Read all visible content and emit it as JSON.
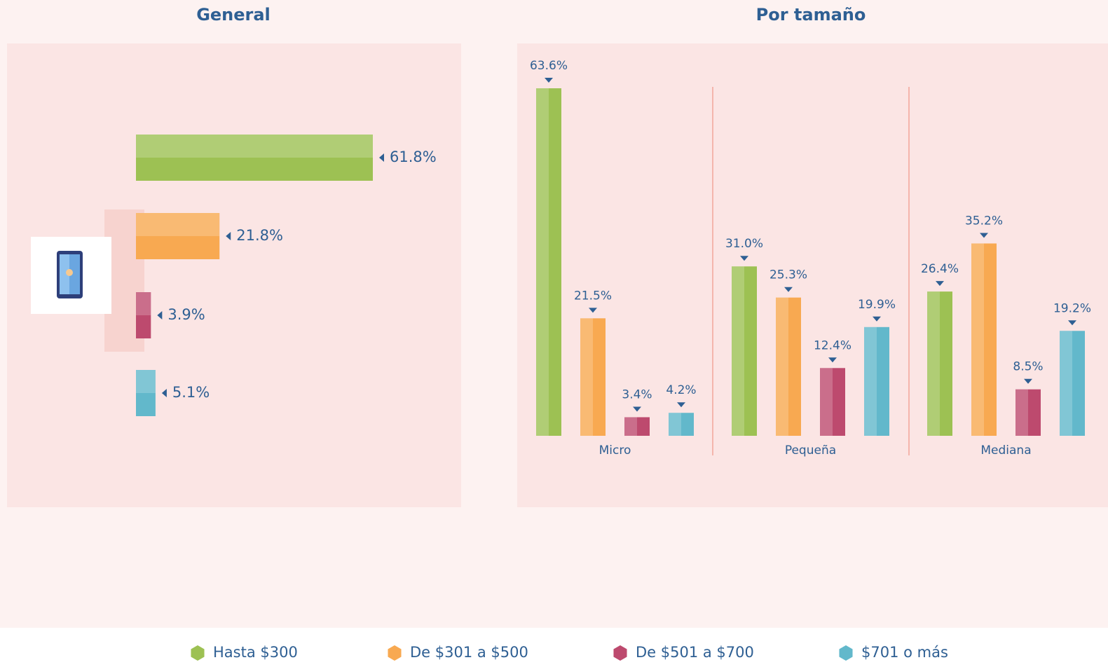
{
  "chart_data": [
    {
      "type": "hbar",
      "title": "General",
      "values": [
        61.8,
        21.8,
        3.9,
        5.1
      ],
      "value_labels": [
        "61.8%",
        "21.8%",
        "3.9%",
        "5.1%"
      ],
      "colors": [
        "#9dc153",
        "#f8a951",
        "#bd4a6e",
        "#62b8cb"
      ]
    },
    {
      "type": "grouped-bar",
      "title": "Por tamaño",
      "categories": [
        "Micro",
        "Pequeña",
        "Mediana"
      ],
      "series": [
        {
          "name": "Hasta $300",
          "color": "#9dc153",
          "values": [
            63.6,
            31.0,
            26.4
          ],
          "value_labels": [
            "63.6%",
            "31.0%",
            "26.4%"
          ]
        },
        {
          "name": "De $301 a $500",
          "color": "#f8a951",
          "values": [
            21.5,
            25.3,
            35.2
          ],
          "value_labels": [
            "21.5%",
            "25.3%",
            "35.2%"
          ]
        },
        {
          "name": "De $501 a $700",
          "color": "#bd4a6e",
          "values": [
            3.4,
            12.4,
            8.5
          ],
          "value_labels": [
            "3.4%",
            "12.4%",
            "8.5%"
          ]
        },
        {
          "name": "$701 o más",
          "color": "#62b8cb",
          "values": [
            4.2,
            19.9,
            19.2
          ],
          "value_labels": [
            "4.2%",
            "19.9%",
            "19.2%"
          ]
        }
      ]
    }
  ]
}
